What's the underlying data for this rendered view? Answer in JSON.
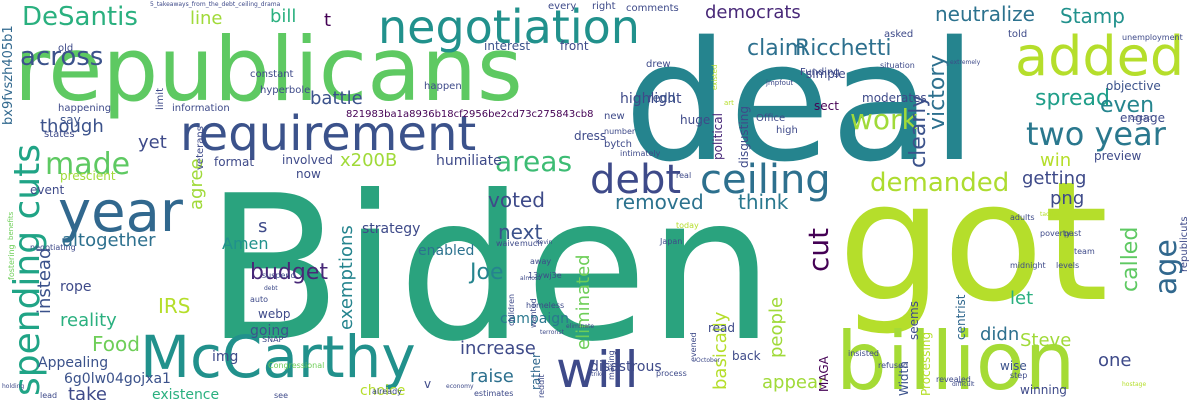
{
  "palette": {
    "purple": "#440154",
    "indigo": "#3b528b",
    "blue": "#31688e",
    "teal": "#21908d",
    "green": "#35b779",
    "lightgreen": "#6ece58",
    "yellowgreen": "#b5de2b",
    "yellow": "#fde725"
  },
  "words": [
    {
      "text": "Biden"
    },
    {
      "text": "deal"
    },
    {
      "text": "got"
    },
    {
      "text": "republicans"
    },
    {
      "text": "billion"
    },
    {
      "text": "McCarthy"
    },
    {
      "text": "requirement"
    },
    {
      "text": "negotiation"
    },
    {
      "text": "added"
    },
    {
      "text": "year"
    },
    {
      "text": "will"
    },
    {
      "text": "ceiling"
    },
    {
      "text": "debt"
    },
    {
      "text": "made"
    },
    {
      "text": "two year"
    },
    {
      "text": "spending cuts"
    },
    {
      "text": "DeSantis"
    },
    {
      "text": "across"
    },
    {
      "text": "work"
    },
    {
      "text": "areas"
    },
    {
      "text": "demanded"
    },
    {
      "text": "age"
    },
    {
      "text": "cut"
    },
    {
      "text": "claim"
    },
    {
      "text": "Ricchetti"
    },
    {
      "text": "spread"
    },
    {
      "text": "even"
    },
    {
      "text": "victory"
    },
    {
      "text": "clearly"
    },
    {
      "text": "neutralize"
    },
    {
      "text": "Stamp"
    },
    {
      "text": "democrats"
    },
    {
      "text": "battle"
    },
    {
      "text": "budget"
    },
    {
      "text": "voted"
    },
    {
      "text": "removed"
    },
    {
      "text": "think"
    },
    {
      "text": "getting"
    },
    {
      "text": "called"
    },
    {
      "text": "Joe"
    },
    {
      "text": "increase"
    },
    {
      "text": "raise"
    },
    {
      "text": "people"
    },
    {
      "text": "appear"
    },
    {
      "text": "basically"
    },
    {
      "text": "eliminated"
    },
    {
      "text": "exemptions"
    },
    {
      "text": "next"
    },
    {
      "text": "altogether"
    },
    {
      "text": "reality"
    },
    {
      "text": "instead"
    },
    {
      "text": "Food"
    },
    {
      "text": "IRS"
    },
    {
      "text": "take"
    },
    {
      "text": "Steve"
    },
    {
      "text": "one"
    },
    {
      "text": "let"
    },
    {
      "text": "didn"
    },
    {
      "text": "win"
    },
    {
      "text": "png"
    },
    {
      "text": "s"
    },
    {
      "text": "line"
    },
    {
      "text": "bill"
    },
    {
      "text": "t"
    },
    {
      "text": "though"
    },
    {
      "text": "yet"
    },
    {
      "text": "agree"
    },
    {
      "text": "x200B"
    },
    {
      "text": "Amen"
    },
    {
      "text": "disastrous"
    },
    {
      "text": "campaign"
    },
    {
      "text": "humiliate"
    },
    {
      "text": "highlight"
    },
    {
      "text": "strategy"
    },
    {
      "text": "enabled"
    },
    {
      "text": "going"
    },
    {
      "text": "rope"
    },
    {
      "text": "Appealing"
    },
    {
      "text": "existence"
    },
    {
      "text": "6g0lw04gojxa1"
    },
    {
      "text": "choice"
    },
    {
      "text": "img"
    },
    {
      "text": "webp"
    },
    {
      "text": "MAGA"
    },
    {
      "text": "rather"
    },
    {
      "text": "read"
    },
    {
      "text": "wise"
    },
    {
      "text": "winning"
    },
    {
      "text": "seems"
    },
    {
      "text": "centrist"
    },
    {
      "text": "Processing"
    },
    {
      "text": "Width"
    },
    {
      "text": "back"
    },
    {
      "text": "dress"
    },
    {
      "text": "redd"
    },
    {
      "text": "interest"
    },
    {
      "text": "front"
    },
    {
      "text": "simple"
    },
    {
      "text": "moderates"
    },
    {
      "text": "objective"
    },
    {
      "text": "engage"
    },
    {
      "text": "preview"
    },
    {
      "text": "sect"
    },
    {
      "text": "political"
    },
    {
      "text": "disgusting"
    },
    {
      "text": "format"
    },
    {
      "text": "prescient"
    },
    {
      "text": "event"
    },
    {
      "text": "say"
    },
    {
      "text": "now"
    },
    {
      "text": "involved"
    },
    {
      "text": "huge"
    },
    {
      "text": "Office"
    },
    {
      "text": "asked"
    },
    {
      "text": "told"
    },
    {
      "text": "hyperbole"
    },
    {
      "text": "constant"
    },
    {
      "text": "information"
    },
    {
      "text": "happening"
    },
    {
      "text": "happen"
    },
    {
      "text": "drew"
    },
    {
      "text": "veterans"
    },
    {
      "text": "limit"
    },
    {
      "text": "old"
    },
    {
      "text": "states"
    },
    {
      "text": "bx9fvszh405b1"
    },
    {
      "text": "821983ba1a8936b18cf2956be2cd73c275843cb8"
    },
    {
      "text": "every"
    },
    {
      "text": "right"
    },
    {
      "text": "comments"
    },
    {
      "text": "new"
    },
    {
      "text": "number"
    },
    {
      "text": "intimately"
    },
    {
      "text": "bytch"
    },
    {
      "text": "high"
    },
    {
      "text": "Funding"
    },
    {
      "text": "situation"
    },
    {
      "text": "jmpfout"
    },
    {
      "text": "real"
    },
    {
      "text": "much"
    },
    {
      "text": "waive"
    },
    {
      "text": "away"
    },
    {
      "text": "13ywj3e"
    },
    {
      "text": "auto"
    },
    {
      "text": "suspend"
    },
    {
      "text": "SNAP"
    },
    {
      "text": "homeless"
    },
    {
      "text": "Congressional"
    },
    {
      "text": "fostering"
    },
    {
      "text": "negotiating"
    },
    {
      "text": "Japan"
    },
    {
      "text": "children"
    },
    {
      "text": "today"
    },
    {
      "text": "wanted"
    },
    {
      "text": "Kevin"
    },
    {
      "text": "terrorist"
    },
    {
      "text": "making"
    },
    {
      "text": "evened"
    },
    {
      "text": "process"
    },
    {
      "text": "October"
    },
    {
      "text": "insisted"
    },
    {
      "text": "refused"
    },
    {
      "text": "revealed"
    },
    {
      "text": "adults"
    },
    {
      "text": "poverty"
    },
    {
      "text": "midnight"
    },
    {
      "text": "estimates"
    },
    {
      "text": "reddit"
    },
    {
      "text": "already"
    },
    {
      "text": "see"
    },
    {
      "text": "lead"
    },
    {
      "text": "v"
    },
    {
      "text": "step"
    },
    {
      "text": "difficult"
    },
    {
      "text": "tactics"
    },
    {
      "text": "past"
    },
    {
      "text": "team"
    },
    {
      "text": "levels"
    },
    {
      "text": "unemployment"
    },
    {
      "text": "republicuts"
    },
    {
      "text": "benefits"
    },
    {
      "text": "existed"
    },
    {
      "text": "art"
    },
    {
      "text": "extremely"
    },
    {
      "text": "contact"
    },
    {
      "text": "5_takeaways_from_the_debt_ceiling_drama"
    },
    {
      "text": "debt"
    },
    {
      "text": "holding"
    },
    {
      "text": "hostage"
    },
    {
      "text": "economy"
    },
    {
      "text": "strike"
    },
    {
      "text": "almost"
    },
    {
      "text": "eliminate"
    }
  ]
}
